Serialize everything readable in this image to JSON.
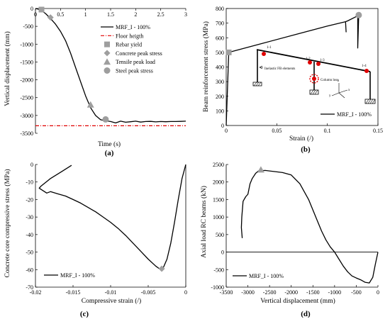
{
  "chart_data": [
    {
      "id": "a",
      "type": "line",
      "panel_label": "(a)",
      "xlabel": "Time (s)",
      "ylabel": "Vertical displacement (mm)",
      "xlim": [
        0,
        3
      ],
      "ylim": [
        -3500,
        0
      ],
      "xticks": [
        "0",
        "0.5",
        "1",
        "1.5",
        "2",
        "2.5",
        "3"
      ],
      "yticks": [
        "0",
        "-500",
        "-1000",
        "-1500",
        "-2000",
        "-2500",
        "-3000",
        "-3500"
      ],
      "legend_position": "top-right",
      "legend_order": [
        "MRF_I - 100%",
        "Floor heigth",
        "Rebar yield",
        "Concrete peak stress",
        "Tensile peak load",
        "Steel peak stress"
      ],
      "series": [
        {
          "name": "MRF_I - 100%",
          "x": [
            0,
            0.05,
            0.12,
            0.2,
            0.3,
            0.4,
            0.5,
            0.6,
            0.7,
            0.8,
            0.9,
            1.0,
            1.1,
            1.2,
            1.3,
            1.4,
            1.5,
            1.6,
            1.7,
            1.8,
            1.9,
            2.0,
            2.1,
            2.2,
            2.3,
            2.4,
            2.5,
            2.6,
            2.7,
            2.8,
            2.9,
            3.0
          ],
          "y": [
            0,
            -15,
            -60,
            -140,
            -280,
            -440,
            -640,
            -900,
            -1250,
            -1650,
            -2050,
            -2450,
            -2780,
            -3000,
            -3120,
            -3150,
            -3170,
            -3210,
            -3160,
            -3190,
            -3175,
            -3160,
            -3185,
            -3170,
            -3165,
            -3180,
            -3170,
            -3175,
            -3170,
            -3170,
            -3165,
            -3160
          ]
        },
        {
          "name": "Floor heigth",
          "x": [
            0,
            3
          ],
          "y": [
            -3290,
            -3290
          ]
        }
      ],
      "markers": [
        {
          "name": "Rebar yield",
          "shape": "square",
          "x": 0.12,
          "y": -30
        },
        {
          "name": "Concrete peak stress",
          "shape": "diamond",
          "x": 0.3,
          "y": -250
        },
        {
          "name": "Tensile peak load",
          "shape": "triangle",
          "x": 1.1,
          "y": -2700
        },
        {
          "name": "Steel peak stress",
          "shape": "circle",
          "x": 1.4,
          "y": -3110
        }
      ]
    },
    {
      "id": "b",
      "type": "line",
      "panel_label": "(b)",
      "xlabel": "Strain (/)",
      "ylabel": "Beam reinforcement stress (MPa)",
      "xlim": [
        0,
        0.15
      ],
      "ylim": [
        0,
        800
      ],
      "xticks": [
        "0",
        "0.05",
        "0.1",
        "0.15"
      ],
      "yticks": [
        "0",
        "100",
        "200",
        "300",
        "400",
        "500",
        "600",
        "700",
        "800"
      ],
      "legend_position": "bottom-right",
      "series": [
        {
          "name": "MRF_I - 100%",
          "x": [
            0,
            0.0025,
            0.035,
            0.07,
            0.1,
            0.118,
            0.1185,
            0.118,
            0.12,
            0.13,
            0.13,
            0.131
          ],
          "y": [
            0,
            500,
            560,
            625,
            680,
            710,
            640,
            710,
            715,
            750,
            530,
            755
          ]
        }
      ],
      "markers": [
        {
          "name": "Rebar yield",
          "shape": "square",
          "x": 0.0025,
          "y": 500
        },
        {
          "name": "Steel peak stress",
          "shape": "circle",
          "x": 0.131,
          "y": 755
        }
      ],
      "inset": {
        "labels": [
          "1-1",
          "1-2",
          "1-3",
          "1-4",
          "Inelastic FB elements",
          "Column loss",
          "z",
          "y",
          "x"
        ]
      }
    },
    {
      "id": "c",
      "type": "line",
      "panel_label": "(c)",
      "xlabel": "Compressive strain (/)",
      "ylabel": "Concrete core compressive stress (MPa)",
      "xlim": [
        -0.02,
        0
      ],
      "ylim": [
        -70,
        0
      ],
      "xticks": [
        "-0.02",
        "-0.015",
        "-0.01",
        "-0.005",
        "0"
      ],
      "yticks": [
        "0",
        "-10",
        "-20",
        "-30",
        "-40",
        "-50",
        "-60",
        "-70"
      ],
      "legend_position": "bottom-left",
      "series": [
        {
          "name": "MRF_I - 100%",
          "x": [
            0,
            -0.0005,
            -0.001,
            -0.0015,
            -0.002,
            -0.0025,
            -0.003,
            -0.0035,
            -0.004,
            -0.005,
            -0.006,
            -0.007,
            -0.008,
            -0.009,
            -0.01,
            -0.011,
            -0.012,
            -0.013,
            -0.014,
            -0.015,
            -0.016,
            -0.017,
            -0.018,
            -0.0185,
            -0.0195,
            -0.0193,
            -0.018,
            -0.0165,
            -0.0152
          ],
          "y": [
            0,
            -8,
            -20,
            -33,
            -45,
            -54,
            -59,
            -59.5,
            -58,
            -54,
            -49.5,
            -45,
            -40.5,
            -36.5,
            -33,
            -30,
            -27,
            -24.5,
            -22,
            -20,
            -18,
            -16.8,
            -15.5,
            -16.3,
            -13.5,
            -12.5,
            -8,
            -4,
            -0.5
          ]
        }
      ],
      "markers": [
        {
          "name": "Concrete peak stress",
          "shape": "diamond",
          "x": -0.0032,
          "y": -59.5
        }
      ]
    },
    {
      "id": "d",
      "type": "line",
      "panel_label": "(d)",
      "xlabel": "Vertical displacement (mm)",
      "ylabel": "Axial load RC beams (kN)",
      "xlim": [
        -3500,
        0
      ],
      "ylim": [
        -1000,
        2500
      ],
      "xticks": [
        "-3500",
        "-3000",
        "-2500",
        "-2000",
        "-1500",
        "-1000",
        "-500",
        "0"
      ],
      "yticks": [
        "-1000",
        "-500",
        "0",
        "500",
        "1000",
        "1500",
        "2000",
        "2500"
      ],
      "legend_position": "bottom-left",
      "series": [
        {
          "name": "MRF_I - 100%",
          "x": [
            -3130,
            -3140,
            -3150,
            -3140,
            -3110,
            -3050,
            -3000,
            -2950,
            -2900,
            -2820,
            -2750,
            -2600,
            -2400,
            -2200,
            -2000,
            -1800,
            -1600,
            -1500,
            -1400,
            -1300,
            -1200,
            -1100,
            -1000,
            -900,
            -800,
            -700,
            -600,
            -500,
            -400,
            -300,
            -200,
            -120,
            -60,
            0
          ],
          "y": [
            400,
            550,
            700,
            1000,
            1450,
            1580,
            1650,
            1950,
            2100,
            2250,
            2320,
            2330,
            2300,
            2270,
            2200,
            1950,
            1500,
            1200,
            900,
            600,
            350,
            150,
            0,
            -200,
            -400,
            -560,
            -680,
            -740,
            -790,
            -860,
            -880,
            -720,
            -350,
            0
          ]
        }
      ],
      "markers": [
        {
          "name": "Tensile peak load",
          "shape": "triangle",
          "x": -2700,
          "y": 2350
        }
      ]
    }
  ]
}
